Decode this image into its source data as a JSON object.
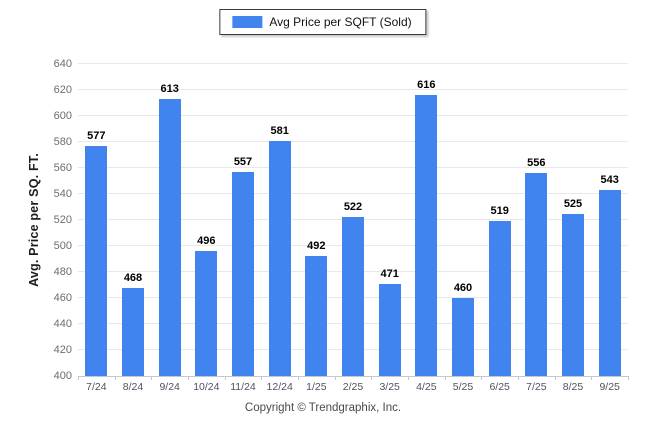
{
  "legend": {
    "label": "Avg Price per SQFT (Sold)"
  },
  "colors": {
    "bar": "#4184f0",
    "gridline": "#e9e9eb",
    "axis_line": "#c3c7ce",
    "ytick_text": "#6d6d72",
    "xtick_text": "#4e5360"
  },
  "chart_data": {
    "type": "bar",
    "title": "",
    "categories": [
      "7/24",
      "8/24",
      "9/24",
      "10/24",
      "11/24",
      "12/24",
      "1/25",
      "2/25",
      "3/25",
      "4/25",
      "5/25",
      "6/25",
      "7/25",
      "8/25",
      "9/25"
    ],
    "values": [
      577,
      468,
      613,
      496,
      557,
      581,
      492,
      522,
      471,
      616,
      460,
      519,
      556,
      525,
      543
    ],
    "series_name": "Avg Price per SQFT (Sold)",
    "xlabel": "",
    "ylabel": "Avg. Price per SQ. FT.",
    "ylim": [
      400,
      640
    ],
    "yticks": [
      400,
      420,
      440,
      460,
      480,
      500,
      520,
      540,
      560,
      580,
      600,
      620,
      640
    ],
    "grid": true,
    "legend_position": "top",
    "data_labels": true
  },
  "footer": {
    "copyright": "Copyright © Trendgraphix, Inc."
  }
}
